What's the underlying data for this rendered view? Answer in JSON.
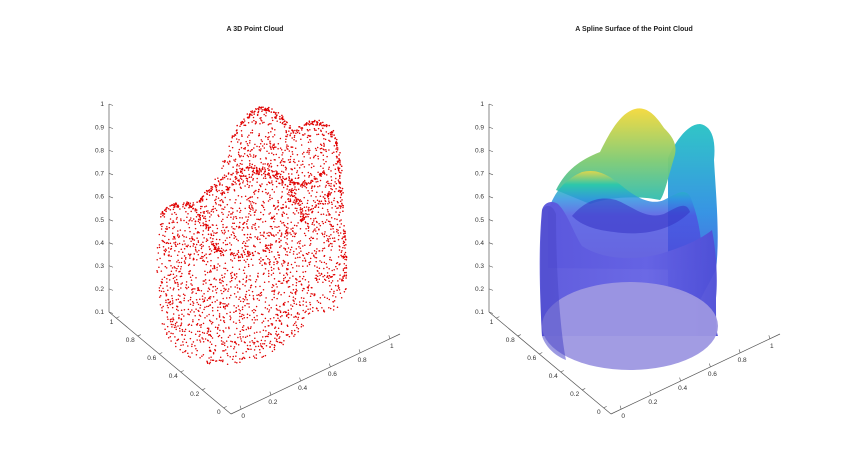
{
  "chart_data": [
    {
      "type": "scatter",
      "title": "A 3D Point Cloud",
      "marker_color": "#e00000",
      "projection": "3d",
      "zlim": [
        0.1,
        1
      ],
      "z_ticks": [
        "0.1",
        "0.2",
        "0.3",
        "0.4",
        "0.5",
        "0.6",
        "0.7",
        "0.8",
        "0.9",
        "1"
      ],
      "y_ticks": [
        "0",
        "0.2",
        "0.4",
        "0.6",
        "0.8",
        "1"
      ],
      "x_ticks": [
        "0",
        "0.2",
        "0.4",
        "0.6",
        "0.8",
        "1"
      ]
    },
    {
      "type": "surface",
      "title": "A Spline Surface of the Point Cloud",
      "colormap": "parula",
      "colors": [
        "#3f3dd1",
        "#4b4fe0",
        "#2f8fe0",
        "#23c3b4",
        "#e8d64a"
      ],
      "projection": "3d",
      "zlim": [
        0.1,
        1
      ],
      "z_ticks": [
        "0.1",
        "0.2",
        "0.3",
        "0.4",
        "0.5",
        "0.6",
        "0.7",
        "0.8",
        "0.9",
        "1"
      ],
      "y_ticks": [
        "0",
        "0.2",
        "0.4",
        "0.6",
        "0.8",
        "1"
      ],
      "x_ticks": [
        "0",
        "0.2",
        "0.4",
        "0.6",
        "0.8",
        "1"
      ]
    }
  ]
}
